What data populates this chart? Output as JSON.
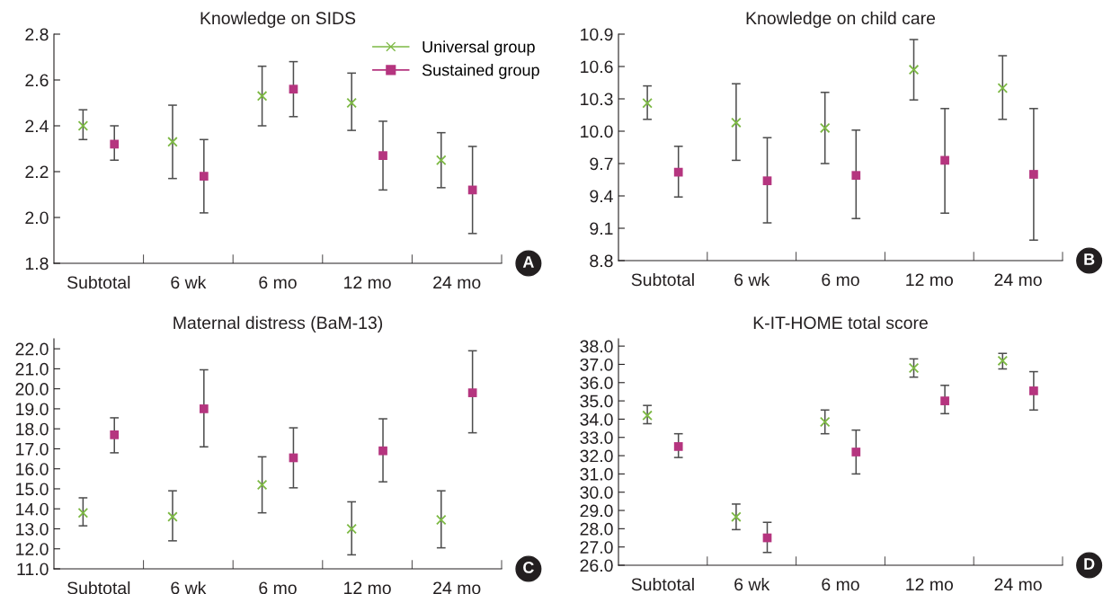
{
  "chart_data": [
    {
      "type": "scatter",
      "title": "Knowledge on SIDS",
      "categories": [
        "Subtotal",
        "6 wk",
        "6 mo",
        "12 mo",
        "24 mo"
      ],
      "ylim": [
        1.8,
        2.8
      ],
      "yticks": [
        {
          "value": 1.8,
          "label": "1.8"
        },
        {
          "value": 2.0,
          "label": "2.0"
        },
        {
          "value": 2.2,
          "label": "2.2"
        },
        {
          "value": 2.4,
          "label": "2.4"
        },
        {
          "value": 2.6,
          "label": "2.6"
        },
        {
          "value": 2.8,
          "label": "2.8"
        }
      ],
      "grid": false,
      "legend": "top right",
      "annotations": [
        "A"
      ],
      "series": [
        {
          "name": "Universal group",
          "color": "#7cb843",
          "marker": "cross",
          "values": [
            2.4,
            2.33,
            2.53,
            2.5,
            2.25
          ],
          "errors": [
            [
              2.34,
              2.47
            ],
            [
              2.17,
              2.49
            ],
            [
              2.4,
              2.66
            ],
            [
              2.38,
              2.63
            ],
            [
              2.13,
              2.37
            ]
          ]
        },
        {
          "name": "Sustained group",
          "color": "#b5357f",
          "marker": "square",
          "values": [
            2.32,
            2.18,
            2.56,
            2.27,
            2.12
          ],
          "errors": [
            [
              2.25,
              2.4
            ],
            [
              2.02,
              2.34
            ],
            [
              2.44,
              2.68
            ],
            [
              2.12,
              2.42
            ],
            [
              1.93,
              2.31
            ]
          ]
        }
      ]
    },
    {
      "type": "scatter",
      "title": "Knowledge on child care",
      "categories": [
        "Subtotal",
        "6 wk",
        "6 mo",
        "12 mo",
        "24 mo"
      ],
      "ylim": [
        8.8,
        10.9
      ],
      "yticks": [
        {
          "value": 8.8,
          "label": "8.8"
        },
        {
          "value": 9.1,
          "label": "9.1"
        },
        {
          "value": 9.4,
          "label": "9.4"
        },
        {
          "value": 9.7,
          "label": "9.7"
        },
        {
          "value": 10.0,
          "label": "10.0"
        },
        {
          "value": 10.3,
          "label": "10.3"
        },
        {
          "value": 10.6,
          "label": "10.6"
        },
        {
          "value": 10.9,
          "label": "10.9"
        }
      ],
      "grid": false,
      "annotations": [
        "B"
      ],
      "series": [
        {
          "color": "#7cb843",
          "marker": "cross",
          "values": [
            10.26,
            10.08,
            10.03,
            10.57,
            10.4
          ],
          "errors": [
            [
              10.11,
              10.42
            ],
            [
              9.73,
              10.44
            ],
            [
              9.7,
              10.36
            ],
            [
              10.29,
              10.85
            ],
            [
              10.11,
              10.7
            ]
          ]
        },
        {
          "color": "#b5357f",
          "marker": "square",
          "values": [
            9.62,
            9.54,
            9.59,
            9.73,
            9.6
          ],
          "errors": [
            [
              9.39,
              9.86
            ],
            [
              9.15,
              9.94
            ],
            [
              9.19,
              10.01
            ],
            [
              9.24,
              10.21
            ],
            [
              8.99,
              10.21
            ]
          ]
        }
      ]
    },
    {
      "type": "scatter",
      "title": "Maternal distress (BaM-13)",
      "categories": [
        "Subtotal",
        "6 wk",
        "6 mo",
        "12 mo",
        "24 mo"
      ],
      "ylim": [
        11.0,
        22.5
      ],
      "yticks": [
        {
          "value": 11,
          "label": "11.0"
        },
        {
          "value": 12,
          "label": "12.0"
        },
        {
          "value": 13,
          "label": "13.0"
        },
        {
          "value": 14,
          "label": "14.0"
        },
        {
          "value": 15,
          "label": "15.0"
        },
        {
          "value": 16,
          "label": "16.0"
        },
        {
          "value": 17,
          "label": "17.0"
        },
        {
          "value": 18,
          "label": "18.0"
        },
        {
          "value": 19,
          "label": "19.0"
        },
        {
          "value": 20,
          "label": "20.0"
        },
        {
          "value": 21,
          "label": "21.0"
        },
        {
          "value": 22,
          "label": "22.0"
        }
      ],
      "grid": false,
      "annotations": [
        "C"
      ],
      "series": [
        {
          "color": "#7cb843",
          "marker": "cross",
          "values": [
            13.8,
            13.6,
            15.2,
            13.0,
            13.45
          ],
          "errors": [
            [
              13.15,
              14.55
            ],
            [
              12.4,
              14.9
            ],
            [
              13.8,
              16.6
            ],
            [
              11.7,
              14.35
            ],
            [
              12.05,
              14.9
            ]
          ]
        },
        {
          "color": "#b5357f",
          "marker": "square",
          "values": [
            17.7,
            19.0,
            16.55,
            16.9,
            19.8
          ],
          "errors": [
            [
              16.8,
              18.55
            ],
            [
              17.1,
              20.95
            ],
            [
              15.05,
              18.05
            ],
            [
              15.35,
              18.5
            ],
            [
              17.8,
              21.9
            ]
          ]
        }
      ]
    },
    {
      "type": "scatter",
      "title": "K-IT-HOME total score",
      "categories": [
        "Subtotal",
        "6 wk",
        "6 mo",
        "12 mo",
        "24 mo"
      ],
      "ylim": [
        26.0,
        38.4
      ],
      "yticks": [
        {
          "value": 26,
          "label": "26.0"
        },
        {
          "value": 27,
          "label": "27.0"
        },
        {
          "value": 28,
          "label": "28.0"
        },
        {
          "value": 29,
          "label": "29.0"
        },
        {
          "value": 30,
          "label": "30.0"
        },
        {
          "value": 31,
          "label": "31.0"
        },
        {
          "value": 32,
          "label": "32.0"
        },
        {
          "value": 33,
          "label": "33.0"
        },
        {
          "value": 34,
          "label": "34.0"
        },
        {
          "value": 35,
          "label": "35.0"
        },
        {
          "value": 36,
          "label": "36.0"
        },
        {
          "value": 37,
          "label": "37.0"
        },
        {
          "value": 38,
          "label": "38.0"
        }
      ],
      "grid": false,
      "annotations": [
        "D"
      ],
      "series": [
        {
          "color": "#7cb843",
          "marker": "cross",
          "values": [
            34.2,
            28.65,
            33.85,
            36.8,
            37.2
          ],
          "errors": [
            [
              33.75,
              34.75
            ],
            [
              27.95,
              29.35
            ],
            [
              33.2,
              34.5
            ],
            [
              36.3,
              37.3
            ],
            [
              36.75,
              37.6
            ]
          ]
        },
        {
          "color": "#b5357f",
          "marker": "square",
          "values": [
            32.5,
            27.5,
            32.2,
            35.0,
            35.55
          ],
          "errors": [
            [
              31.9,
              33.2
            ],
            [
              26.7,
              28.35
            ],
            [
              31.0,
              33.4
            ],
            [
              34.3,
              35.85
            ],
            [
              34.5,
              36.6
            ]
          ]
        }
      ]
    }
  ]
}
